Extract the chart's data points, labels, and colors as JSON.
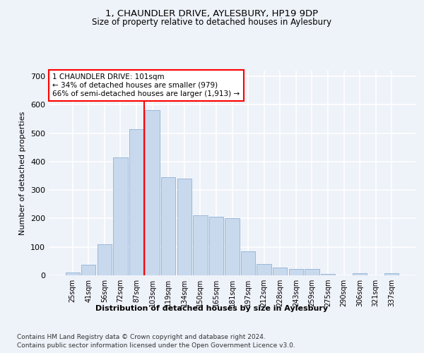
{
  "title1": "1, CHAUNDLER DRIVE, AYLESBURY, HP19 9DP",
  "title2": "Size of property relative to detached houses in Aylesbury",
  "xlabel": "Distribution of detached houses by size in Aylesbury",
  "ylabel": "Number of detached properties",
  "categories": [
    "25sqm",
    "41sqm",
    "56sqm",
    "72sqm",
    "87sqm",
    "103sqm",
    "119sqm",
    "134sqm",
    "150sqm",
    "165sqm",
    "181sqm",
    "197sqm",
    "212sqm",
    "228sqm",
    "243sqm",
    "259sqm",
    "275sqm",
    "290sqm",
    "306sqm",
    "321sqm",
    "337sqm"
  ],
  "values": [
    10,
    38,
    110,
    415,
    515,
    580,
    345,
    340,
    210,
    205,
    200,
    85,
    40,
    27,
    22,
    22,
    5,
    0,
    8,
    0,
    8
  ],
  "bar_color": "#c8d9ee",
  "bar_edge_color": "#9ab8d8",
  "red_line_bin": 5,
  "property_line_label": "1 CHAUNDLER DRIVE: 101sqm",
  "annotation_line1": "← 34% of detached houses are smaller (979)",
  "annotation_line2": "66% of semi-detached houses are larger (1,913) →",
  "ylim": [
    0,
    720
  ],
  "yticks": [
    0,
    100,
    200,
    300,
    400,
    500,
    600,
    700
  ],
  "footer1": "Contains HM Land Registry data © Crown copyright and database right 2024.",
  "footer2": "Contains public sector information licensed under the Open Government Licence v3.0.",
  "bg_color": "#eef2f9",
  "plot_bg_color": "#eef2f9"
}
